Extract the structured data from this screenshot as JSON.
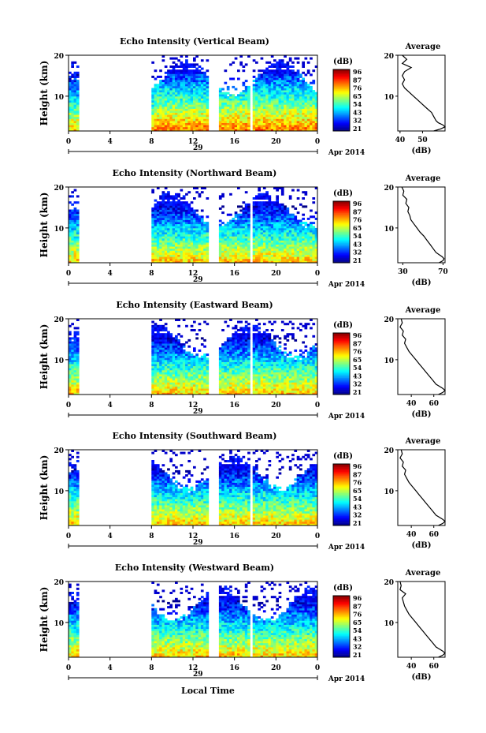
{
  "figure": {
    "xlabel": "Local Time",
    "date_unit": "Apr 2014",
    "date_label": "29",
    "cbar_unit": "(dB)",
    "cbar_ticks": [
      "96",
      "87",
      "76",
      "65",
      "54",
      "43",
      "32",
      "21"
    ],
    "profile_title": "Average",
    "profile_xlabel": "(dB)"
  },
  "chart_data": [
    {
      "type": "heatmap",
      "title": "Echo Intensity (Vertical Beam)",
      "ylabel": "Height (km)",
      "x_ticks": [
        "0",
        "4",
        "8",
        "12",
        "16",
        "20",
        "0"
      ],
      "y_ticks": [
        "20",
        "10"
      ],
      "xlim": [
        0,
        24
      ],
      "ylim": [
        1.5,
        20
      ],
      "clim": [
        21,
        96
      ],
      "gaps_hours": [
        [
          1,
          8
        ],
        [
          13.6,
          14.4
        ],
        [
          16.9,
          17.1
        ],
        [
          17.6,
          17.8
        ]
      ],
      "profile": {
        "type": "line",
        "xlim": [
          39,
          60
        ],
        "x_ticks": [
          "40",
          "50"
        ],
        "y_ticks": [
          "20",
          "10"
        ],
        "x": [
          55,
          58,
          60,
          59,
          57,
          56,
          55,
          54,
          52,
          50,
          48,
          46,
          44,
          42,
          41,
          42,
          41,
          42,
          45,
          41,
          43,
          41
        ],
        "y": [
          1.5,
          2,
          2.5,
          3,
          3.5,
          4,
          5,
          6,
          7,
          8,
          9,
          10,
          11,
          12,
          13,
          14,
          15,
          16,
          17,
          18,
          19,
          20
        ]
      }
    },
    {
      "type": "heatmap",
      "title": "Echo Intensity (Northward Beam)",
      "ylabel": "Height (km)",
      "x_ticks": [
        "0",
        "4",
        "8",
        "12",
        "16",
        "20",
        "0"
      ],
      "y_ticks": [
        "20",
        "10"
      ],
      "xlim": [
        0,
        24
      ],
      "ylim": [
        1.5,
        20
      ],
      "clim": [
        21,
        96
      ],
      "gaps_hours": [
        [
          1,
          8
        ],
        [
          13.6,
          14.4
        ],
        [
          16.9,
          17.1
        ],
        [
          17.6,
          17.8
        ]
      ],
      "profile": {
        "type": "line",
        "xlim": [
          25,
          72
        ],
        "x_ticks": [
          "30",
          "70"
        ],
        "y_ticks": [
          "20",
          "10"
        ],
        "x": [
          66,
          70,
          71,
          69,
          66,
          63,
          60,
          57,
          54,
          51,
          47,
          44,
          41,
          38,
          37,
          35,
          36,
          33,
          34,
          30,
          31,
          29
        ],
        "y": [
          1.5,
          2,
          2.5,
          3,
          3.5,
          4,
          5,
          6,
          7,
          8,
          9,
          10,
          11,
          12,
          13,
          14,
          15,
          16,
          17,
          18,
          19,
          20
        ]
      }
    },
    {
      "type": "heatmap",
      "title": "Echo Intensity (Eastward Beam)",
      "ylabel": "Height (km)",
      "x_ticks": [
        "0",
        "4",
        "8",
        "12",
        "16",
        "20",
        "0"
      ],
      "y_ticks": [
        "20",
        "10"
      ],
      "xlim": [
        0,
        24
      ],
      "ylim": [
        1.5,
        20
      ],
      "clim": [
        21,
        96
      ],
      "gaps_hours": [
        [
          1,
          8
        ],
        [
          13.6,
          14.4
        ],
        [
          16.9,
          17.1
        ],
        [
          17.6,
          17.8
        ]
      ],
      "profile": {
        "type": "line",
        "xlim": [
          28,
          70
        ],
        "x_ticks": [
          "40",
          "60"
        ],
        "y_ticks": [
          "20",
          "10"
        ],
        "x": [
          64,
          68,
          70,
          68,
          65,
          62,
          59,
          56,
          53,
          50,
          47,
          44,
          41,
          38,
          36,
          34,
          35,
          32,
          33,
          30,
          32,
          31
        ],
        "y": [
          1.5,
          2,
          2.5,
          3,
          3.5,
          4,
          5,
          6,
          7,
          8,
          9,
          10,
          11,
          12,
          13,
          14,
          15,
          16,
          17,
          18,
          19,
          20
        ]
      }
    },
    {
      "type": "heatmap",
      "title": "Echo Intensity (Southward Beam)",
      "ylabel": "Height (km)",
      "x_ticks": [
        "0",
        "4",
        "8",
        "12",
        "16",
        "20",
        "0"
      ],
      "y_ticks": [
        "20",
        "10"
      ],
      "xlim": [
        0,
        24
      ],
      "ylim": [
        1.5,
        20
      ],
      "clim": [
        21,
        96
      ],
      "gaps_hours": [
        [
          1,
          8
        ],
        [
          13.6,
          14.4
        ],
        [
          16.9,
          17.1
        ],
        [
          17.6,
          17.8
        ]
      ],
      "profile": {
        "type": "line",
        "xlim": [
          28,
          70
        ],
        "x_ticks": [
          "40",
          "60"
        ],
        "y_ticks": [
          "20",
          "10"
        ],
        "x": [
          64,
          68,
          70,
          68,
          65,
          62,
          59,
          56,
          53,
          50,
          47,
          44,
          41,
          38,
          36,
          34,
          35,
          32,
          33,
          30,
          32,
          31
        ],
        "y": [
          1.5,
          2,
          2.5,
          3,
          3.5,
          4,
          5,
          6,
          7,
          8,
          9,
          10,
          11,
          12,
          13,
          14,
          15,
          16,
          17,
          18,
          19,
          20
        ]
      }
    },
    {
      "type": "heatmap",
      "title": "Echo Intensity (Westward Beam)",
      "ylabel": "Height (km)",
      "x_ticks": [
        "0",
        "4",
        "8",
        "12",
        "16",
        "20",
        "0"
      ],
      "y_ticks": [
        "20",
        "10"
      ],
      "xlim": [
        0,
        24
      ],
      "ylim": [
        1.5,
        20
      ],
      "clim": [
        21,
        96
      ],
      "gaps_hours": [
        [
          1,
          8
        ],
        [
          13.6,
          14.4
        ],
        [
          16.9,
          17.1
        ],
        [
          17.6,
          17.8
        ]
      ],
      "profile": {
        "type": "line",
        "xlim": [
          28,
          70
        ],
        "x_ticks": [
          "40",
          "60"
        ],
        "y_ticks": [
          "20",
          "10"
        ],
        "x": [
          64,
          68,
          70,
          68,
          65,
          62,
          59,
          56,
          53,
          50,
          47,
          44,
          41,
          38,
          36,
          34,
          33,
          32,
          35,
          30,
          31,
          30
        ],
        "y": [
          1.5,
          2,
          2.5,
          3,
          3.5,
          4,
          5,
          6,
          7,
          8,
          9,
          10,
          11,
          12,
          13,
          14,
          15,
          16,
          17,
          18,
          19,
          20
        ]
      }
    }
  ]
}
